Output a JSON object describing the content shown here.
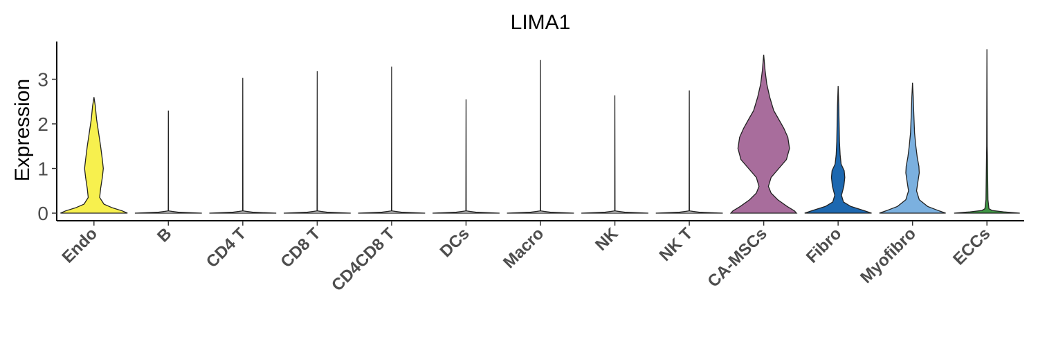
{
  "chart_data": {
    "type": "violin",
    "title": "LIMA1",
    "xlabel": "",
    "ylabel": "Expression",
    "ylim": [
      -0.2,
      3.85
    ],
    "yticks": [
      "0",
      "1",
      "2",
      "3"
    ],
    "grid": false,
    "legend": "none",
    "categories": [
      "Endo",
      "B",
      "CD4 T",
      "CD8 T",
      "CD4CD8 T",
      "DCs",
      "Macro",
      "NK",
      "NK T",
      "CA-MSCs",
      "Fibro",
      "Myofibro",
      "ECCs"
    ],
    "colors": [
      "#F7F04E",
      "#E6E6E6",
      "#E6E6E6",
      "#E6E6E6",
      "#E6E6E6",
      "#E6E6E6",
      "#E6E6E6",
      "#E6E6E6",
      "#E6E6E6",
      "#A86D9C",
      "#1D68B0",
      "#7BB0DF",
      "#3F9444"
    ],
    "max_values": [
      2.6,
      2.3,
      3.03,
      3.18,
      3.28,
      2.55,
      3.43,
      2.64,
      2.75,
      3.55,
      2.85,
      2.92,
      3.67
    ],
    "density_profiles": [
      [
        [
          0,
          1.0
        ],
        [
          0.05,
          0.85
        ],
        [
          0.12,
          0.55
        ],
        [
          0.2,
          0.3
        ],
        [
          0.35,
          0.17
        ],
        [
          0.55,
          0.2
        ],
        [
          0.8,
          0.25
        ],
        [
          1.0,
          0.28
        ],
        [
          1.2,
          0.25
        ],
        [
          1.5,
          0.2
        ],
        [
          1.8,
          0.14
        ],
        [
          2.1,
          0.08
        ],
        [
          2.4,
          0.04
        ],
        [
          2.6,
          0.0
        ]
      ],
      [
        [
          0,
          1.0
        ],
        [
          0.02,
          0.3
        ],
        [
          0.05,
          0.005
        ],
        [
          2.3,
          0.0
        ]
      ],
      [
        [
          0,
          1.0
        ],
        [
          0.02,
          0.3
        ],
        [
          0.05,
          0.005
        ],
        [
          3.03,
          0.0
        ]
      ],
      [
        [
          0,
          1.0
        ],
        [
          0.02,
          0.3
        ],
        [
          0.05,
          0.005
        ],
        [
          3.18,
          0.0
        ]
      ],
      [
        [
          0,
          1.0
        ],
        [
          0.02,
          0.3
        ],
        [
          0.05,
          0.005
        ],
        [
          3.28,
          0.0
        ]
      ],
      [
        [
          0,
          1.0
        ],
        [
          0.02,
          0.3
        ],
        [
          0.05,
          0.005
        ],
        [
          2.55,
          0.0
        ]
      ],
      [
        [
          0,
          1.0
        ],
        [
          0.02,
          0.3
        ],
        [
          0.05,
          0.005
        ],
        [
          3.43,
          0.0
        ]
      ],
      [
        [
          0,
          1.0
        ],
        [
          0.02,
          0.3
        ],
        [
          0.05,
          0.005
        ],
        [
          2.64,
          0.0
        ]
      ],
      [
        [
          0,
          1.0
        ],
        [
          0.02,
          0.3
        ],
        [
          0.05,
          0.005
        ],
        [
          2.75,
          0.0
        ]
      ],
      [
        [
          0,
          0.98
        ],
        [
          0.05,
          0.92
        ],
        [
          0.15,
          0.7
        ],
        [
          0.3,
          0.42
        ],
        [
          0.45,
          0.22
        ],
        [
          0.6,
          0.14
        ],
        [
          0.8,
          0.22
        ],
        [
          1.0,
          0.45
        ],
        [
          1.2,
          0.68
        ],
        [
          1.45,
          0.77
        ],
        [
          1.7,
          0.72
        ],
        [
          1.9,
          0.6
        ],
        [
          2.1,
          0.45
        ],
        [
          2.3,
          0.3
        ],
        [
          2.6,
          0.18
        ],
        [
          2.9,
          0.09
        ],
        [
          3.2,
          0.04
        ],
        [
          3.55,
          0.0
        ]
      ],
      [
        [
          0,
          1.0
        ],
        [
          0.05,
          0.8
        ],
        [
          0.15,
          0.38
        ],
        [
          0.25,
          0.16
        ],
        [
          0.4,
          0.1
        ],
        [
          0.6,
          0.17
        ],
        [
          0.8,
          0.2
        ],
        [
          0.95,
          0.18
        ],
        [
          1.1,
          0.09
        ],
        [
          1.3,
          0.06
        ],
        [
          1.6,
          0.04
        ],
        [
          2.0,
          0.03
        ],
        [
          2.4,
          0.02
        ],
        [
          2.85,
          0.0
        ]
      ],
      [
        [
          0,
          0.99
        ],
        [
          0.05,
          0.8
        ],
        [
          0.15,
          0.45
        ],
        [
          0.3,
          0.2
        ],
        [
          0.5,
          0.12
        ],
        [
          0.7,
          0.16
        ],
        [
          0.9,
          0.2
        ],
        [
          1.05,
          0.19
        ],
        [
          1.25,
          0.14
        ],
        [
          1.5,
          0.1
        ],
        [
          1.8,
          0.06
        ],
        [
          2.2,
          0.04
        ],
        [
          2.6,
          0.02
        ],
        [
          2.92,
          0.0
        ]
      ],
      [
        [
          0,
          0.98
        ],
        [
          0.03,
          0.5
        ],
        [
          0.06,
          0.15
        ],
        [
          0.1,
          0.06
        ],
        [
          0.3,
          0.03
        ],
        [
          0.8,
          0.022
        ],
        [
          1.2,
          0.015
        ],
        [
          1.5,
          0.008
        ],
        [
          3.67,
          0.0
        ]
      ]
    ]
  }
}
